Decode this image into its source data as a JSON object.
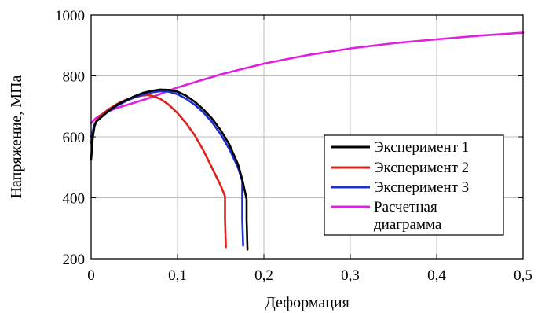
{
  "chart_data": {
    "type": "line",
    "xlabel": "Деформация",
    "ylabel": "Напряжение, МПа",
    "xlim": [
      0,
      0.5
    ],
    "ylim": [
      200,
      1000
    ],
    "x_ticks": [
      0,
      0.1,
      0.2,
      0.3,
      0.4,
      0.5
    ],
    "x_tick_labels": [
      "0",
      "0,1",
      "0,2",
      "0,3",
      "0,4",
      "0,5"
    ],
    "y_ticks": [
      200,
      400,
      600,
      800,
      1000
    ],
    "y_tick_labels": [
      "200",
      "400",
      "600",
      "800",
      "1000"
    ],
    "grid": true,
    "legend_position": "bottom-right",
    "series": [
      {
        "name": "Эксперимент 1",
        "color": "#000000",
        "x": [
          0,
          0.002,
          0.004,
          0.006,
          0.008,
          0.01,
          0.02,
          0.03,
          0.04,
          0.05,
          0.06,
          0.07,
          0.08,
          0.09,
          0.1,
          0.11,
          0.12,
          0.13,
          0.14,
          0.15,
          0.16,
          0.17,
          0.175,
          0.18,
          0.18,
          0.181
        ],
        "y": [
          525,
          600,
          635,
          650,
          655,
          660,
          685,
          705,
          720,
          733,
          744,
          751,
          755,
          754,
          748,
          735,
          715,
          690,
          660,
          622,
          575,
          510,
          460,
          395,
          330,
          230
        ]
      },
      {
        "name": "Эксперимент 2",
        "color": "#e0201b",
        "x": [
          0,
          0.002,
          0.004,
          0.006,
          0.008,
          0.01,
          0.02,
          0.03,
          0.04,
          0.05,
          0.06,
          0.065,
          0.07,
          0.08,
          0.09,
          0.1,
          0.11,
          0.12,
          0.13,
          0.14,
          0.15,
          0.155,
          0.155,
          0.156
        ],
        "y": [
          580,
          615,
          640,
          652,
          660,
          668,
          690,
          708,
          721,
          730,
          736,
          737,
          735,
          725,
          705,
          678,
          645,
          605,
          555,
          498,
          440,
          405,
          330,
          238
        ]
      },
      {
        "name": "Эксперимент 3",
        "color": "#1a2fd0",
        "x": [
          0,
          0.002,
          0.004,
          0.006,
          0.008,
          0.01,
          0.02,
          0.03,
          0.04,
          0.05,
          0.06,
          0.07,
          0.08,
          0.085,
          0.09,
          0.1,
          0.11,
          0.12,
          0.13,
          0.14,
          0.15,
          0.16,
          0.17,
          0.175,
          0.175,
          0.176
        ],
        "y": [
          600,
          620,
          640,
          650,
          655,
          662,
          683,
          702,
          717,
          729,
          739,
          746,
          750,
          750,
          748,
          740,
          725,
          705,
          680,
          648,
          608,
          560,
          500,
          455,
          330,
          243
        ]
      },
      {
        "name": "Расчетная диаграмма",
        "color": "#e020e0",
        "x": [
          0,
          0.005,
          0.01,
          0.02,
          0.03,
          0.05,
          0.07,
          0.1,
          0.15,
          0.2,
          0.25,
          0.3,
          0.35,
          0.4,
          0.45,
          0.5
        ],
        "y": [
          645,
          660,
          670,
          684,
          695,
          712,
          730,
          762,
          805,
          840,
          868,
          890,
          907,
          920,
          932,
          942
        ]
      }
    ],
    "legend_entries": [
      "Эксперимент 1",
      "Эксперимент 2",
      "Эксперимент 3",
      "Расчетная",
      "диаграмма"
    ]
  }
}
